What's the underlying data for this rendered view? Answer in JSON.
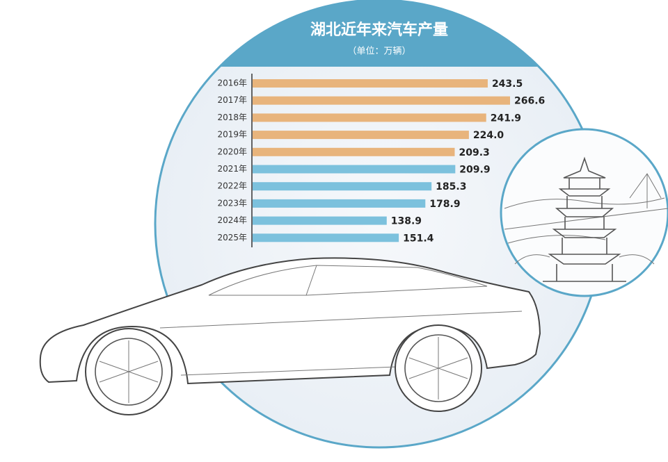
{
  "chart_data": {
    "type": "bar",
    "orientation": "horizontal",
    "title": "湖北近年来汽车产量",
    "subtitle": "（单位：万辆）",
    "categories": [
      "2016年",
      "2017年",
      "2018年",
      "2019年",
      "2020年",
      "2021年",
      "2022年",
      "2023年",
      "2024年",
      "2025年"
    ],
    "values": [
      243.5,
      266.6,
      241.9,
      224.0,
      209.3,
      209.9,
      185.3,
      178.9,
      138.9,
      151.4
    ],
    "value_labels": [
      "243.5",
      "266.6",
      "241.9",
      "224.0",
      "209.3",
      "209.9",
      "185.3",
      "178.9",
      "138.9",
      "151.4"
    ],
    "colors": [
      "#e8b47c",
      "#e8b47c",
      "#e8b47c",
      "#e8b47c",
      "#e8b47c",
      "#7cc1dd",
      "#7cc1dd",
      "#7cc1dd",
      "#7cc1dd",
      "#7cc1dd"
    ]
  }
}
